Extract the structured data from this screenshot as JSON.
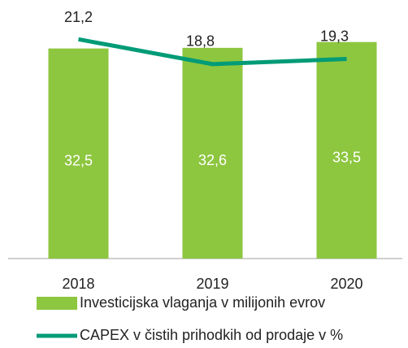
{
  "chart_data": {
    "type": "bar",
    "categories": [
      "2018",
      "2019",
      "2020"
    ],
    "series": [
      {
        "name": "Investicijska vlaganja v milijonih evrov",
        "type": "bar",
        "color": "#8dc63f",
        "values": [
          32.5,
          32.6,
          33.5
        ],
        "value_labels": [
          "32,5",
          "32,6",
          "33,5"
        ]
      },
      {
        "name": "CAPEX v čistih prihodkih od prodaje v %",
        "type": "line",
        "axis": "y2",
        "color": "#009b77",
        "values": [
          21.2,
          18.8,
          19.3
        ],
        "value_labels": [
          "21,2",
          "18,8",
          "19,3"
        ]
      }
    ],
    "ylim": [
      0,
      40
    ],
    "y2lim": [
      0,
      25
    ],
    "grid": false
  }
}
